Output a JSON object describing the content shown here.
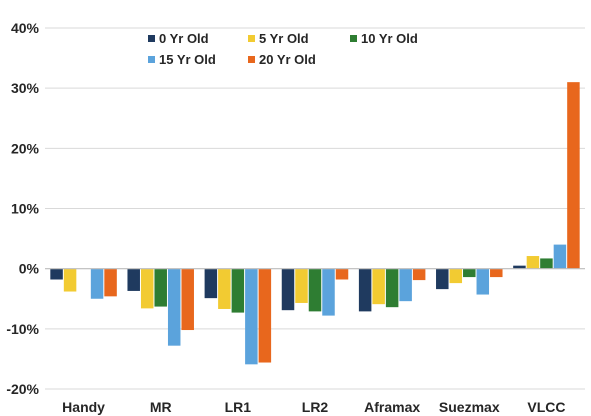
{
  "chart_data": {
    "type": "bar",
    "categories": [
      "Handy",
      "MR",
      "LR1",
      "LR2",
      "Aframax",
      "Suezmax",
      "VLCC"
    ],
    "series": [
      {
        "name": "0 Yr Old",
        "color": "#1f3a5f",
        "values": [
          -1.8,
          -3.7,
          -4.9,
          -6.9,
          -7.1,
          -3.4,
          0.5
        ]
      },
      {
        "name": "5 Yr Old",
        "color": "#f2cb32",
        "values": [
          -3.8,
          -6.6,
          -6.7,
          -5.7,
          -5.9,
          -2.4,
          2.1
        ]
      },
      {
        "name": "10 Yr Old",
        "color": "#2e7d32",
        "values": [
          0,
          -6.3,
          -7.3,
          -7.1,
          -6.4,
          -1.4,
          1.7
        ]
      },
      {
        "name": "15 Yr Old",
        "color": "#5ba3dc",
        "values": [
          -5.0,
          -12.8,
          -15.9,
          -7.8,
          -5.4,
          -4.3,
          4.0
        ]
      },
      {
        "name": "20 Yr Old",
        "color": "#e8671d",
        "values": [
          -4.6,
          -10.2,
          -15.6,
          -1.8,
          -1.9,
          -1.4,
          31.0
        ]
      }
    ],
    "ylim": [
      -20,
      40
    ],
    "yticks": [
      "-20%",
      "-10%",
      "0%",
      "10%",
      "20%",
      "30%",
      "40%"
    ],
    "ytick_values": [
      -20,
      -10,
      0,
      10,
      20,
      30,
      40
    ],
    "grid": true,
    "legend_position": "top"
  }
}
